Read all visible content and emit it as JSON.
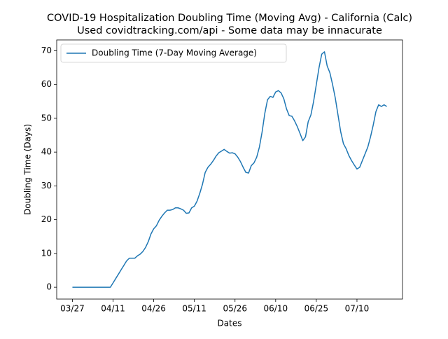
{
  "chart_data": {
    "type": "line",
    "title": "COVID-19 Hospitalization Doubling Time (Moving Avg) - California (Calc)",
    "subtitle": "Used covidtracking.com/api - Some data may be innacurate",
    "x_label": "Dates",
    "y_label": "Doubling Time (Days)",
    "categories": [
      "03/27",
      "03/28",
      "03/29",
      "03/30",
      "03/31",
      "04/01",
      "04/02",
      "04/03",
      "04/04",
      "04/05",
      "04/06",
      "04/07",
      "04/08",
      "04/09",
      "04/10",
      "04/11",
      "04/12",
      "04/13",
      "04/14",
      "04/15",
      "04/16",
      "04/17",
      "04/18",
      "04/19",
      "04/20",
      "04/21",
      "04/22",
      "04/23",
      "04/24",
      "04/25",
      "04/26",
      "04/27",
      "04/28",
      "04/29",
      "04/30",
      "05/01",
      "05/02",
      "05/03",
      "05/04",
      "05/05",
      "05/06",
      "05/07",
      "05/08",
      "05/09",
      "05/10",
      "05/11",
      "05/12",
      "05/13",
      "05/14",
      "05/15",
      "05/16",
      "05/17",
      "05/18",
      "05/19",
      "05/20",
      "05/21",
      "05/22",
      "05/23",
      "05/24",
      "05/25",
      "05/26",
      "05/27",
      "05/28",
      "05/29",
      "05/30",
      "05/31",
      "06/01",
      "06/02",
      "06/03",
      "06/04",
      "06/05",
      "06/06",
      "06/07",
      "06/08",
      "06/09",
      "06/10",
      "06/11",
      "06/12",
      "06/13",
      "06/14",
      "06/15",
      "06/16",
      "06/17",
      "06/18",
      "06/19",
      "06/20",
      "06/21",
      "06/22",
      "06/23",
      "06/24",
      "06/25",
      "06/26",
      "06/27",
      "06/28",
      "06/29",
      "06/30",
      "07/01",
      "07/02",
      "07/03",
      "07/04",
      "07/05",
      "07/06",
      "07/07",
      "07/08",
      "07/09",
      "07/10",
      "07/11",
      "07/12",
      "07/13",
      "07/14",
      "07/15",
      "07/16",
      "07/17",
      "07/18",
      "07/19",
      "07/20",
      "07/21"
    ],
    "series": [
      {
        "name": "Doubling Time (7-Day Moving Average)",
        "color": "#1f77b4",
        "values": [
          0,
          0,
          0,
          0,
          0,
          0,
          0,
          0,
          0,
          0,
          0,
          0,
          0,
          0,
          0,
          1.3,
          2.6,
          3.9,
          5.2,
          6.5,
          7.8,
          8.6,
          8.6,
          8.6,
          9.3,
          9.8,
          10.6,
          11.8,
          13.5,
          15.8,
          17.3,
          18.2,
          19.8,
          21,
          22,
          22.8,
          22.8,
          23,
          23.5,
          23.5,
          23.2,
          22.8,
          21.9,
          22.0,
          23.5,
          24,
          25.5,
          27.8,
          30.5,
          34,
          35.5,
          36.4,
          37.5,
          38.8,
          39.8,
          40.3,
          40.8,
          40.2,
          39.7,
          39.8,
          39.5,
          38.5,
          37.2,
          35.5,
          34.0,
          33.8,
          36.0,
          36.8,
          38.5,
          41.5,
          46,
          51.5,
          55.5,
          56.5,
          56.2,
          57.8,
          58.2,
          57.5,
          55.8,
          52.8,
          50.8,
          50.6,
          49.2,
          47.5,
          45.5,
          43.4,
          44.5,
          49,
          51,
          55,
          60,
          65,
          69,
          69.7,
          65.5,
          63.5,
          60,
          56,
          51,
          46,
          42.5,
          41,
          39,
          37.5,
          36.2,
          35,
          35.5,
          37.5,
          39.5,
          41.5,
          44.5,
          48,
          52,
          54,
          53.5,
          54,
          53.5
        ]
      }
    ],
    "xticks": [
      "03/27",
      "04/11",
      "04/26",
      "05/11",
      "05/26",
      "06/10",
      "06/25",
      "07/10"
    ],
    "ylim": [
      -3.5,
      73.2
    ],
    "yticks": [
      0,
      10,
      20,
      30,
      40,
      50,
      60,
      70
    ],
    "legend": "upper left"
  }
}
